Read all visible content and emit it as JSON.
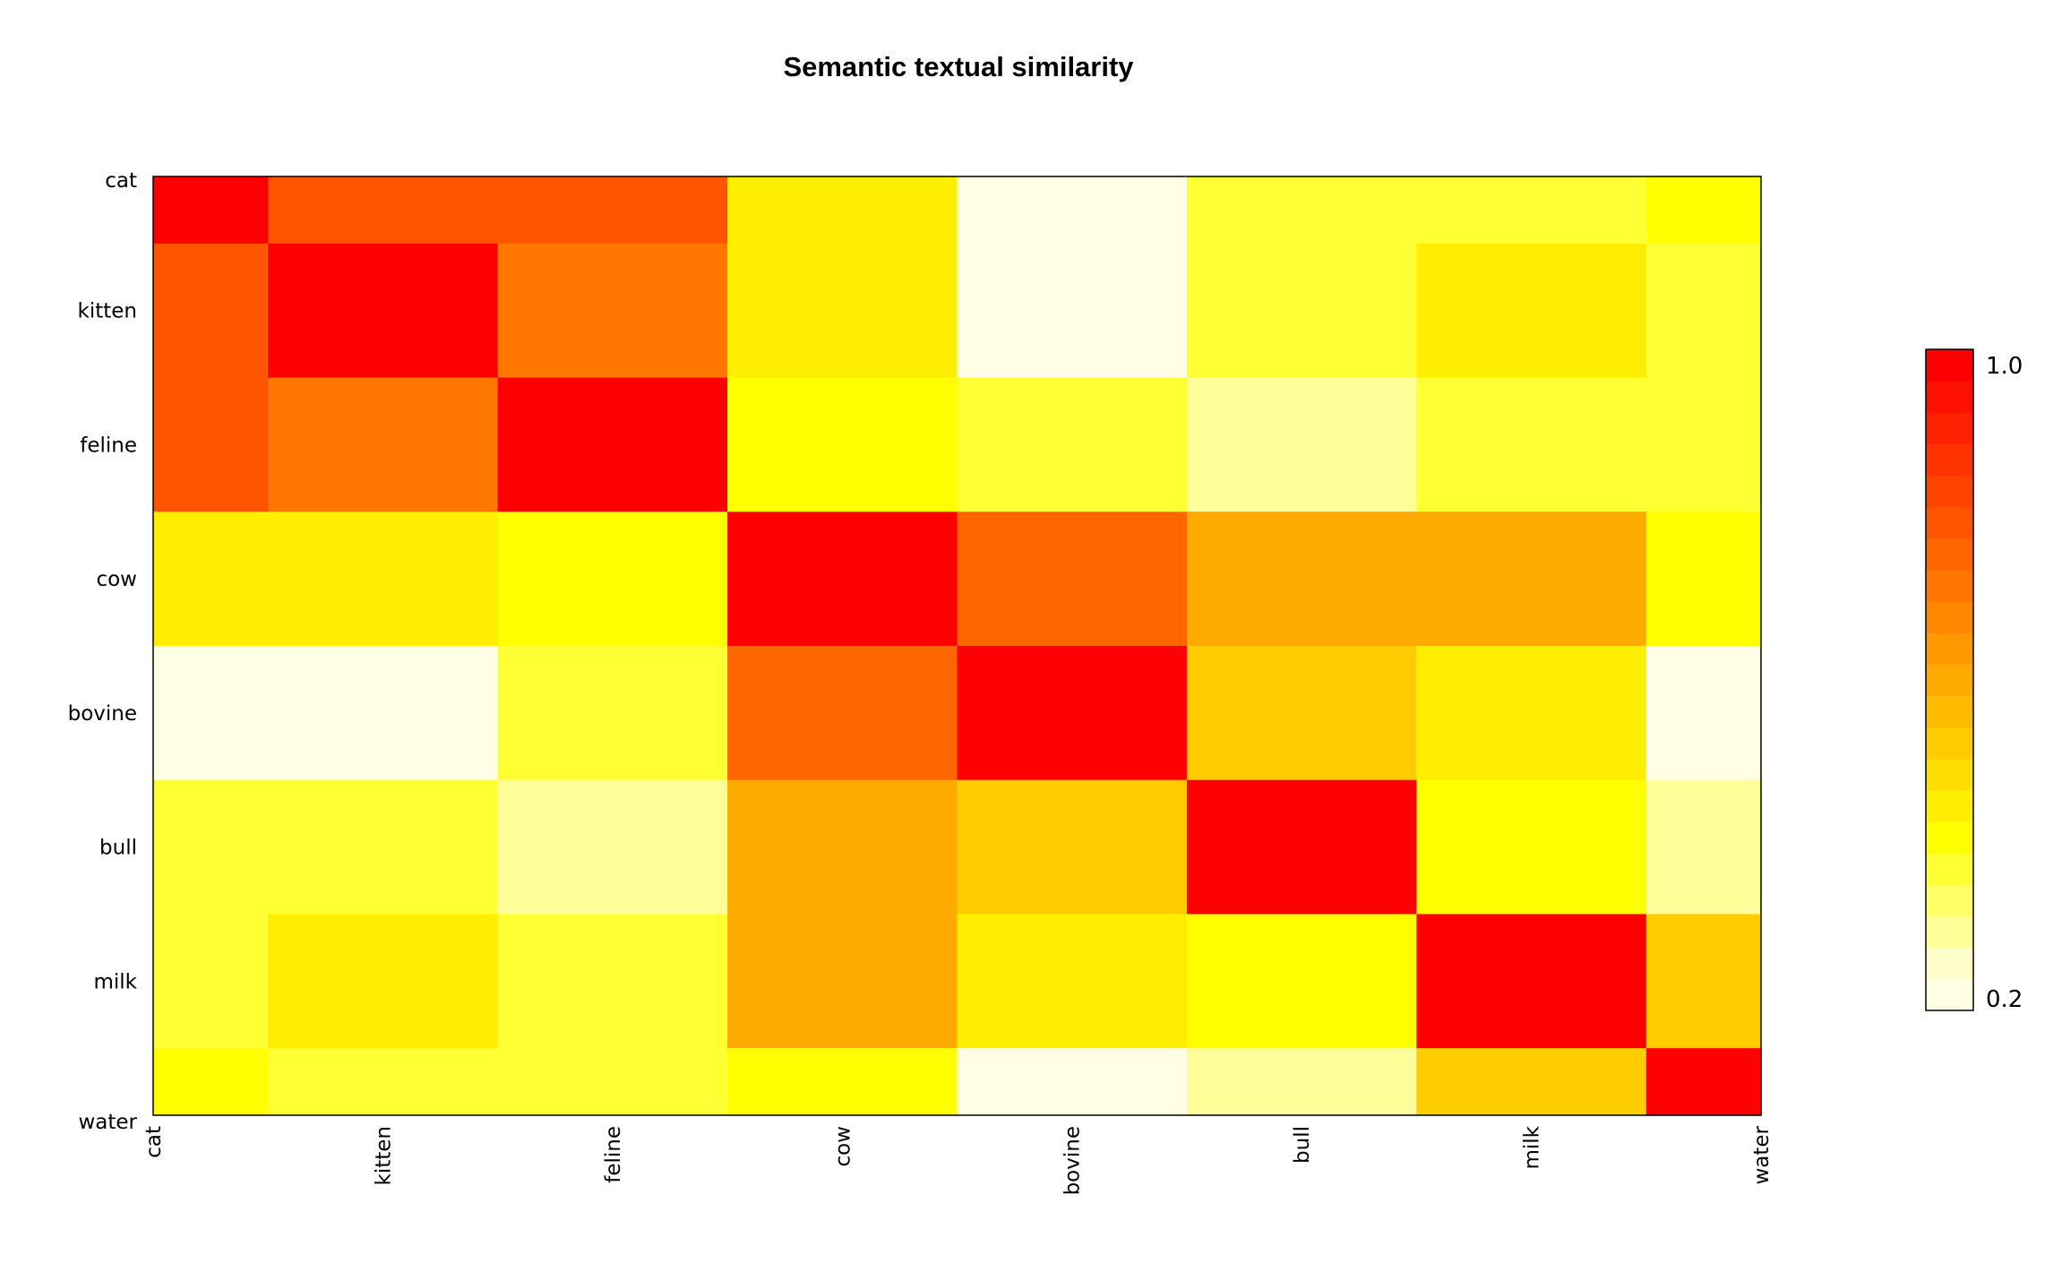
{
  "chart_data": {
    "type": "heatmap",
    "title": "Semantic textual similarity",
    "xlabel": "",
    "ylabel": "",
    "x_categories": [
      "cat",
      "kitten",
      "feline",
      "cow",
      "bovine",
      "bull",
      "milk",
      "water"
    ],
    "y_categories": [
      "cat",
      "kitten",
      "feline",
      "cow",
      "bovine",
      "bull",
      "milk",
      "water"
    ],
    "values": [
      [
        1.0,
        0.78,
        0.78,
        0.45,
        0.2,
        0.36,
        0.36,
        0.41
      ],
      [
        0.78,
        1.0,
        0.72,
        0.45,
        0.2,
        0.36,
        0.45,
        0.36
      ],
      [
        0.78,
        0.72,
        1.0,
        0.41,
        0.36,
        0.29,
        0.36,
        0.36
      ],
      [
        0.45,
        0.45,
        0.41,
        1.0,
        0.75,
        0.6,
        0.6,
        0.41
      ],
      [
        0.2,
        0.2,
        0.36,
        0.75,
        1.0,
        0.52,
        0.45,
        0.22
      ],
      [
        0.36,
        0.36,
        0.29,
        0.6,
        0.52,
        1.0,
        0.41,
        0.29
      ],
      [
        0.36,
        0.45,
        0.36,
        0.6,
        0.45,
        0.41,
        1.0,
        0.52
      ],
      [
        0.41,
        0.36,
        0.36,
        0.41,
        0.22,
        0.29,
        0.52,
        1.0
      ]
    ],
    "colorbar": {
      "min": 0.2,
      "max": 1.0,
      "min_label": "0.2",
      "max_label": "1.0",
      "colors": [
        "#FFFFE5",
        "#FFFFCC",
        "#FFFF99",
        "#FFFF66",
        "#FFFF33",
        "#FFFF00",
        "#FFEE00",
        "#FFDD00",
        "#FFCC00",
        "#FFBB00",
        "#FFAA00",
        "#FF9900",
        "#FF8800",
        "#FF7700",
        "#FF6600",
        "#FF5500",
        "#FF4400",
        "#FF3300",
        "#FF2200",
        "#FF1100",
        "#FF0000"
      ]
    },
    "colormap": "heat (white-yellow-orange-red)",
    "legend": "right",
    "grid": false
  }
}
